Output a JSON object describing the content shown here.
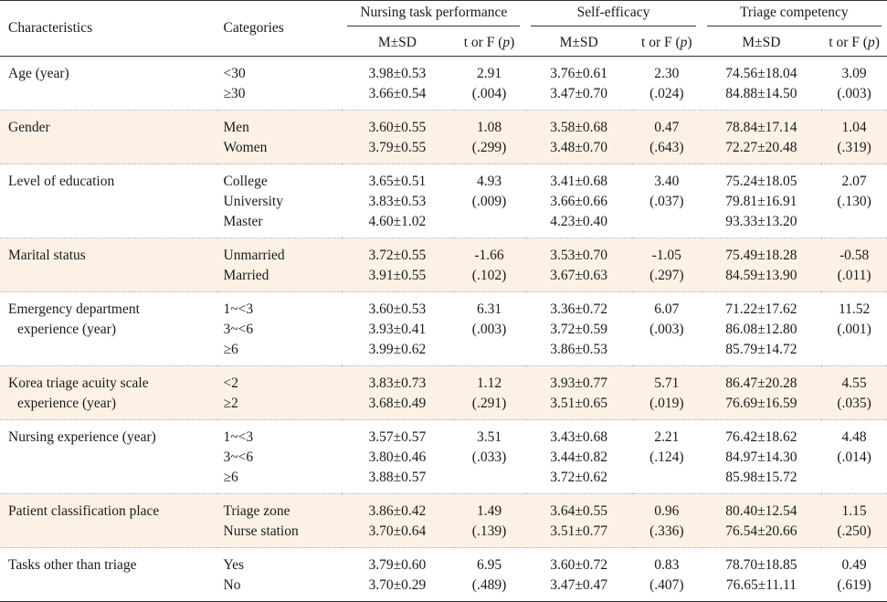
{
  "header": {
    "characteristics": "Characteristics",
    "categories": "Categories",
    "groups": [
      "Nursing task performance",
      "Self-efficacy",
      "Triage competency"
    ],
    "msd": "M±SD",
    "tf": "t or F ("
  },
  "rows": [
    {
      "char": [
        "Age (year)"
      ],
      "cats": [
        "<30",
        "≥30"
      ],
      "ntp_msd": [
        "3.98±0.53",
        "3.66±0.54"
      ],
      "ntp_tf": [
        "2.91",
        "(.004)"
      ],
      "se_msd": [
        "3.76±0.61",
        "3.47±0.70"
      ],
      "se_tf": [
        "2.30",
        "(.024)"
      ],
      "tc_msd": [
        "74.56±18.04",
        "84.88±14.50"
      ],
      "tc_tf": [
        "3.09",
        "(.003)"
      ]
    },
    {
      "char": [
        "Gender"
      ],
      "cats": [
        "Men",
        "Women"
      ],
      "ntp_msd": [
        "3.60±0.55",
        "3.79±0.55"
      ],
      "ntp_tf": [
        "1.08",
        "(.299)"
      ],
      "se_msd": [
        "3.58±0.68",
        "3.48±0.70"
      ],
      "se_tf": [
        "0.47",
        "(.643)"
      ],
      "tc_msd": [
        "78.84±17.14",
        "72.27±20.48"
      ],
      "tc_tf": [
        "1.04",
        "(.319)"
      ]
    },
    {
      "char": [
        "Level of education"
      ],
      "cats": [
        "College",
        "University",
        "Master"
      ],
      "ntp_msd": [
        "3.65±0.51",
        "3.83±0.53",
        "4.60±1.02"
      ],
      "ntp_tf": [
        "4.93",
        "(.009)"
      ],
      "se_msd": [
        "3.41±0.68",
        "3.66±0.66",
        "4.23±0.40"
      ],
      "se_tf": [
        "3.40",
        "(.037)"
      ],
      "tc_msd": [
        "75.24±18.05",
        "79.81±16.91",
        "93.33±13.20"
      ],
      "tc_tf": [
        "2.07",
        "(.130)"
      ]
    },
    {
      "char": [
        "Marital status"
      ],
      "cats": [
        "Unmarried",
        "Married"
      ],
      "ntp_msd": [
        "3.72±0.55",
        "3.91±0.55"
      ],
      "ntp_tf": [
        "-1.66",
        "(.102)"
      ],
      "se_msd": [
        "3.53±0.70",
        "3.67±0.63"
      ],
      "se_tf": [
        "-1.05",
        "(.297)"
      ],
      "tc_msd": [
        "75.49±18.28",
        "84.59±13.90"
      ],
      "tc_tf": [
        "-0.58",
        "(.011)"
      ]
    },
    {
      "char": [
        "Emergency department",
        "experience (year)"
      ],
      "cats": [
        "1~<3",
        "3~<6",
        "≥6"
      ],
      "ntp_msd": [
        "3.60±0.53",
        "3.93±0.41",
        "3.99±0.62"
      ],
      "ntp_tf": [
        "6.31",
        "(.003)"
      ],
      "se_msd": [
        "3.36±0.72",
        "3.72±0.59",
        "3.86±0.53"
      ],
      "se_tf": [
        "6.07",
        "(.003)"
      ],
      "tc_msd": [
        "71.22±17.62",
        "86.08±12.80",
        "85.79±14.72"
      ],
      "tc_tf": [
        "11.52",
        "(.001)"
      ]
    },
    {
      "char": [
        "Korea triage acuity scale",
        "experience (year)"
      ],
      "cats": [
        "<2",
        "≥2"
      ],
      "ntp_msd": [
        "3.83±0.73",
        "3.68±0.49"
      ],
      "ntp_tf": [
        "1.12",
        "(.291)"
      ],
      "se_msd": [
        "3.93±0.77",
        "3.51±0.65"
      ],
      "se_tf": [
        "5.71",
        "(.019)"
      ],
      "tc_msd": [
        "86.47±20.28",
        "76.69±16.59"
      ],
      "tc_tf": [
        "4.55",
        "(.035)"
      ]
    },
    {
      "char": [
        "Nursing experience (year)"
      ],
      "cats": [
        "1~<3",
        "3~<6",
        "≥6"
      ],
      "ntp_msd": [
        "3.57±0.57",
        "3.80±0.46",
        "3.88±0.57"
      ],
      "ntp_tf": [
        "3.51",
        "(.033)"
      ],
      "se_msd": [
        "3.43±0.68",
        "3.44±0.82",
        "3.72±0.62"
      ],
      "se_tf": [
        "2.21",
        "(.124)"
      ],
      "tc_msd": [
        "76.42±18.62",
        "84.97±14.30",
        "85.98±15.72"
      ],
      "tc_tf": [
        "4.48",
        "(.014)"
      ]
    },
    {
      "char": [
        "Patient classification place"
      ],
      "cats": [
        "Triage zone",
        "Nurse station"
      ],
      "ntp_msd": [
        "3.86±0.42",
        "3.70±0.64"
      ],
      "ntp_tf": [
        "1.49",
        "(.139)"
      ],
      "se_msd": [
        "3.64±0.55",
        "3.51±0.77"
      ],
      "se_tf": [
        "0.96",
        "(.336)"
      ],
      "tc_msd": [
        "80.40±12.54",
        "76.54±20.66"
      ],
      "tc_tf": [
        "1.15",
        "(.250)"
      ]
    },
    {
      "char": [
        "Tasks other than triage"
      ],
      "cats": [
        "Yes",
        "No"
      ],
      "ntp_msd": [
        "3.79±0.60",
        "3.70±0.29"
      ],
      "ntp_tf": [
        "6.95",
        "(.489)"
      ],
      "se_msd": [
        "3.60±0.72",
        "3.47±0.47"
      ],
      "se_tf": [
        "0.83",
        "(.407)"
      ],
      "tc_msd": [
        "78.70±18.85",
        "76.65±11.11"
      ],
      "tc_tf": [
        "0.49",
        "(.619)"
      ]
    }
  ]
}
